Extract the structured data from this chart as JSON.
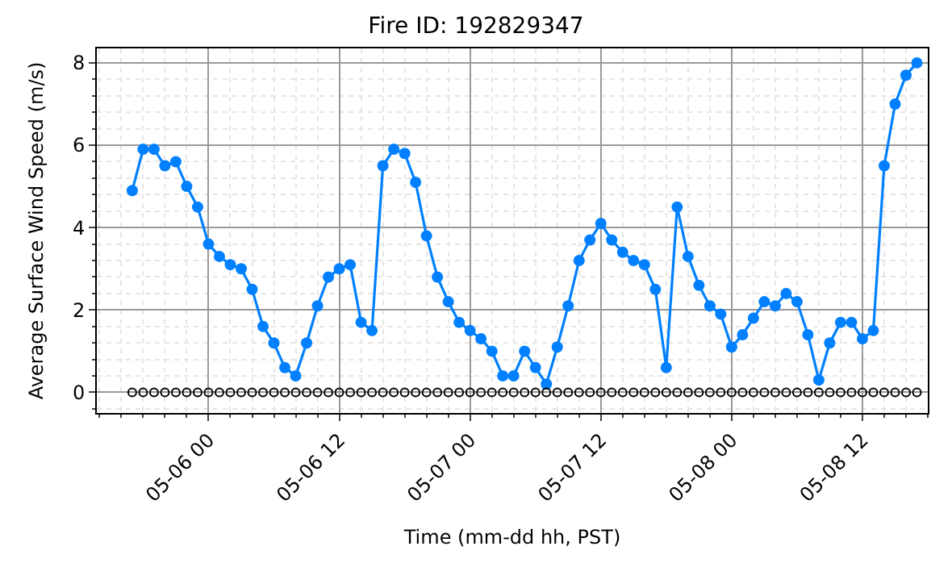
{
  "chart_data": {
    "type": "line",
    "title": "Fire ID: 192829347",
    "xlabel": "Time (mm-dd hh, PST)",
    "ylabel": "Average Surface Wind Speed (m/s)",
    "x": [
      "--05-05T17:00",
      "--05-05T18:00",
      "--05-05T19:00",
      "--05-05T20:00",
      "--05-05T21:00",
      "--05-05T22:00",
      "--05-05T23:00",
      "--05-06T00:00",
      "--05-06T01:00",
      "--05-06T02:00",
      "--05-06T03:00",
      "--05-06T04:00",
      "--05-06T05:00",
      "--05-06T06:00",
      "--05-06T07:00",
      "--05-06T08:00",
      "--05-06T09:00",
      "--05-06T10:00",
      "--05-06T11:00",
      "--05-06T12:00",
      "--05-06T13:00",
      "--05-06T14:00",
      "--05-06T15:00",
      "--05-06T16:00",
      "--05-06T17:00",
      "--05-06T18:00",
      "--05-06T19:00",
      "--05-06T20:00",
      "--05-06T21:00",
      "--05-06T22:00",
      "--05-06T23:00",
      "--05-07T00:00",
      "--05-07T01:00",
      "--05-07T02:00",
      "--05-07T03:00",
      "--05-07T04:00",
      "--05-07T05:00",
      "--05-07T06:00",
      "--05-07T07:00",
      "--05-07T08:00",
      "--05-07T09:00",
      "--05-07T10:00",
      "--05-07T11:00",
      "--05-07T12:00",
      "--05-07T13:00",
      "--05-07T14:00",
      "--05-07T15:00",
      "--05-07T16:00",
      "--05-07T17:00",
      "--05-07T18:00",
      "--05-07T19:00",
      "--05-07T20:00",
      "--05-07T21:00",
      "--05-07T22:00",
      "--05-07T23:00",
      "--05-08T00:00",
      "--05-08T01:00",
      "--05-08T02:00",
      "--05-08T03:00",
      "--05-08T04:00",
      "--05-08T05:00",
      "--05-08T06:00",
      "--05-08T07:00",
      "--05-08T08:00",
      "--05-08T09:00",
      "--05-08T10:00",
      "--05-08T11:00",
      "--05-08T12:00",
      "--05-08T13:00",
      "--05-08T14:00",
      "--05-08T15:00",
      "--05-08T16:00",
      "--05-08T17:00"
    ],
    "series": [
      {
        "color": "#0080ff",
        "marker": "circle",
        "values": [
          4.9,
          5.9,
          5.9,
          5.5,
          5.6,
          5.0,
          4.5,
          3.6,
          3.3,
          3.1,
          3.0,
          2.5,
          1.6,
          1.2,
          0.6,
          0.4,
          1.2,
          2.1,
          2.8,
          3.0,
          3.1,
          1.7,
          1.5,
          5.5,
          5.9,
          5.8,
          5.1,
          3.8,
          2.8,
          2.2,
          1.7,
          1.5,
          1.3,
          1.0,
          0.4,
          0.4,
          1.0,
          0.6,
          0.2,
          1.1,
          2.1,
          3.2,
          3.7,
          4.1,
          3.7,
          3.4,
          3.2,
          3.1,
          2.5,
          0.6,
          4.5,
          3.3,
          2.6,
          2.1,
          1.9,
          1.1,
          1.4,
          1.8,
          2.2,
          2.1,
          2.4,
          2.2,
          1.4,
          0.3,
          1.2,
          1.7,
          1.7,
          1.3,
          1.5,
          5.5,
          7.0,
          7.7,
          8.0
        ]
      },
      {
        "type": "scatter",
        "color": "#000000",
        "marker": "circle",
        "values": [
          0,
          0,
          0,
          0,
          0,
          0,
          0,
          0,
          0,
          0,
          0,
          0,
          0,
          0,
          0,
          0,
          0,
          0,
          0,
          0,
          0,
          0,
          0,
          0,
          0,
          0,
          0,
          0,
          0,
          0,
          0,
          0,
          0,
          0,
          0,
          0,
          0,
          0,
          0,
          0,
          0,
          0,
          0,
          0,
          0,
          0,
          0,
          0,
          0,
          0,
          0,
          0,
          0,
          0,
          0,
          0,
          0,
          0,
          0,
          0,
          0,
          0,
          0,
          0,
          0,
          0,
          0,
          0,
          0,
          0,
          0,
          0,
          0
        ]
      }
    ],
    "xlim": [
      "--05-05T13:45",
      "--05-08T18:00"
    ],
    "xticks": [
      {
        "value": "--05-06T00:00",
        "label": "05-06 00"
      },
      {
        "value": "--05-06T12:00",
        "label": "05-06 12"
      },
      {
        "value": "--05-07T00:00",
        "label": "05-07 00"
      },
      {
        "value": "--05-07T12:00",
        "label": "05-07 12"
      },
      {
        "value": "--05-08T00:00",
        "label": "05-08 00"
      },
      {
        "value": "--05-08T12:00",
        "label": "05-08 12"
      }
    ],
    "ylim": [
      -0.5,
      8.35
    ],
    "yticks": [
      0,
      2,
      4,
      6,
      8
    ],
    "grid": true
  }
}
